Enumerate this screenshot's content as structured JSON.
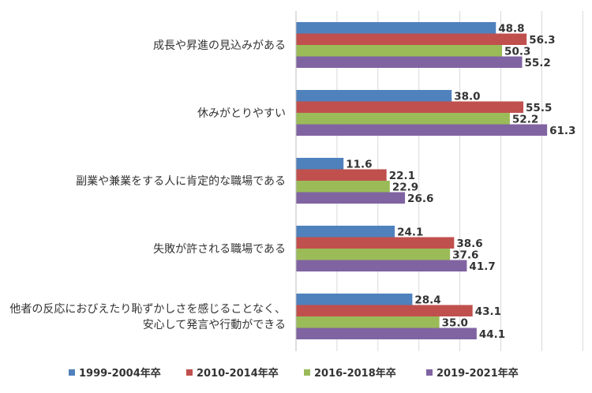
{
  "chart_data": {
    "type": "bar",
    "orientation": "horizontal",
    "categories": [
      [
        "成長や昇進の見込みがある"
      ],
      [
        "休みがとりやすい"
      ],
      [
        "副業や兼業をする人に肯定的な職場である"
      ],
      [
        "失敗が許される職場である"
      ],
      [
        "他者の反応におびえたり恥ずかしさを感じることなく、",
        "安心して発言や行動ができる"
      ]
    ],
    "series": [
      {
        "name": "1999-2004年卒",
        "color": "#4F81BD",
        "values": [
          48.8,
          38.0,
          11.6,
          24.1,
          28.4
        ],
        "labels": [
          "48.8",
          "38.0",
          "11.6",
          "24.1",
          "28.4"
        ]
      },
      {
        "name": "2010-2014年卒",
        "color": "#C0504D",
        "values": [
          56.3,
          55.5,
          22.1,
          38.6,
          43.1
        ],
        "labels": [
          "56.3",
          "55.5",
          "22.1",
          "38.6",
          "43.1"
        ]
      },
      {
        "name": "2016-2018年卒",
        "color": "#9BBB59",
        "values": [
          50.3,
          52.2,
          22.9,
          37.6,
          35.0
        ],
        "labels": [
          "50.3",
          "52.2",
          "22.9",
          "37.6",
          "35.0"
        ]
      },
      {
        "name": "2019-2021年卒",
        "color": "#8064A2",
        "values": [
          55.2,
          61.3,
          26.6,
          41.7,
          44.1
        ],
        "labels": [
          "55.2",
          "61.3",
          "26.6",
          "41.7",
          "44.1"
        ]
      }
    ],
    "xlim": [
      0,
      70
    ],
    "grid": true,
    "legend_position": "bottom"
  }
}
